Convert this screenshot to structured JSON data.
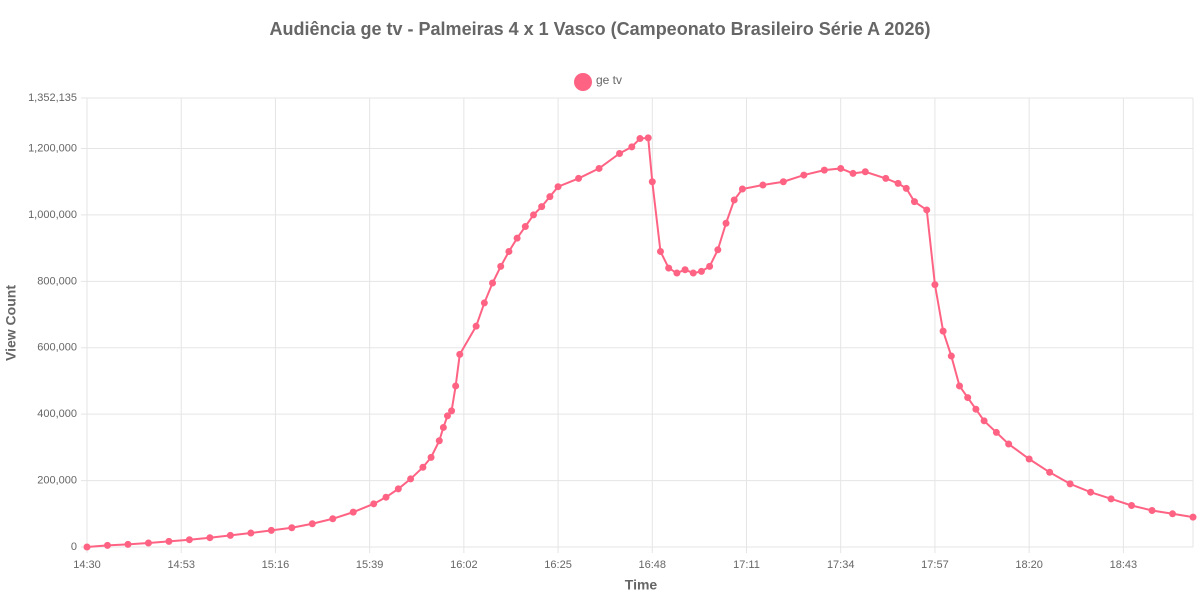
{
  "chart_data": {
    "type": "line",
    "title": "Audiência ge tv - Palmeiras 4 x 1 Vasco (Campeonato Brasileiro Série A 2026)",
    "x_label": "Time",
    "y_label": "View Count",
    "x": [
      "14:30",
      "14:35",
      "14:40",
      "14:45",
      "14:50",
      "14:55",
      "15:00",
      "15:05",
      "15:10",
      "15:15",
      "15:20",
      "15:25",
      "15:30",
      "15:35",
      "15:40",
      "15:43",
      "15:46",
      "15:49",
      "15:52",
      "15:54",
      "15:56",
      "15:57",
      "15:58",
      "15:59",
      "16:00",
      "16:01",
      "16:05",
      "16:07",
      "16:09",
      "16:11",
      "16:13",
      "16:15",
      "16:17",
      "16:19",
      "16:21",
      "16:23",
      "16:25",
      "16:30",
      "16:35",
      "16:40",
      "16:43",
      "16:45",
      "16:47",
      "16:48",
      "16:50",
      "16:52",
      "16:54",
      "16:56",
      "16:58",
      "17:00",
      "17:02",
      "17:04",
      "17:06",
      "17:08",
      "17:10",
      "17:15",
      "17:20",
      "17:25",
      "17:30",
      "17:34",
      "17:37",
      "17:40",
      "17:45",
      "17:48",
      "17:50",
      "17:52",
      "17:55",
      "17:57",
      "17:59",
      "18:01",
      "18:03",
      "18:05",
      "18:07",
      "18:09",
      "18:12",
      "18:15",
      "18:20",
      "18:25",
      "18:30",
      "18:35",
      "18:40",
      "18:45",
      "18:50",
      "18:55",
      "19:00"
    ],
    "series": [
      {
        "name": "ge tv",
        "color": "#ff6384",
        "values": [
          0,
          5000,
          8000,
          12000,
          17000,
          22000,
          28000,
          35000,
          42000,
          50000,
          58000,
          70000,
          85000,
          105000,
          130000,
          150000,
          175000,
          205000,
          240000,
          270000,
          320000,
          360000,
          395000,
          410000,
          485000,
          580000,
          665000,
          735000,
          795000,
          845000,
          890000,
          930000,
          965000,
          1000000,
          1025000,
          1055000,
          1085000,
          1110000,
          1140000,
          1185000,
          1205000,
          1230000,
          1232000,
          1100000,
          890000,
          840000,
          825000,
          835000,
          825000,
          830000,
          845000,
          895000,
          975000,
          1045000,
          1078000,
          1090000,
          1100000,
          1120000,
          1135000,
          1140000,
          1125000,
          1130000,
          1110000,
          1095000,
          1080000,
          1040000,
          1015000,
          790000,
          650000,
          575000,
          485000,
          450000,
          415000,
          380000,
          345000,
          310000,
          265000,
          225000,
          190000,
          165000,
          145000,
          125000,
          110000,
          100000,
          90000
        ]
      }
    ],
    "xlim": [
      "14:30",
      "19:00"
    ],
    "xticks": [
      "14:30",
      "14:53",
      "15:16",
      "15:39",
      "16:02",
      "16:25",
      "16:48",
      "17:11",
      "17:34",
      "17:57",
      "18:20",
      "18:43"
    ],
    "ylim": [
      0,
      1352135
    ],
    "yticks": [
      {
        "value": 0,
        "label": "0"
      },
      {
        "value": 200000,
        "label": "200,000"
      },
      {
        "value": 400000,
        "label": "400,000"
      },
      {
        "value": 600000,
        "label": "600,000"
      },
      {
        "value": 800000,
        "label": "800,000"
      },
      {
        "value": 1000000,
        "label": "1,000,000"
      },
      {
        "value": 1200000,
        "label": "1,200,000"
      },
      {
        "value": 1352135,
        "label": "1,352,135"
      }
    ],
    "grid": true,
    "legend": "top"
  }
}
